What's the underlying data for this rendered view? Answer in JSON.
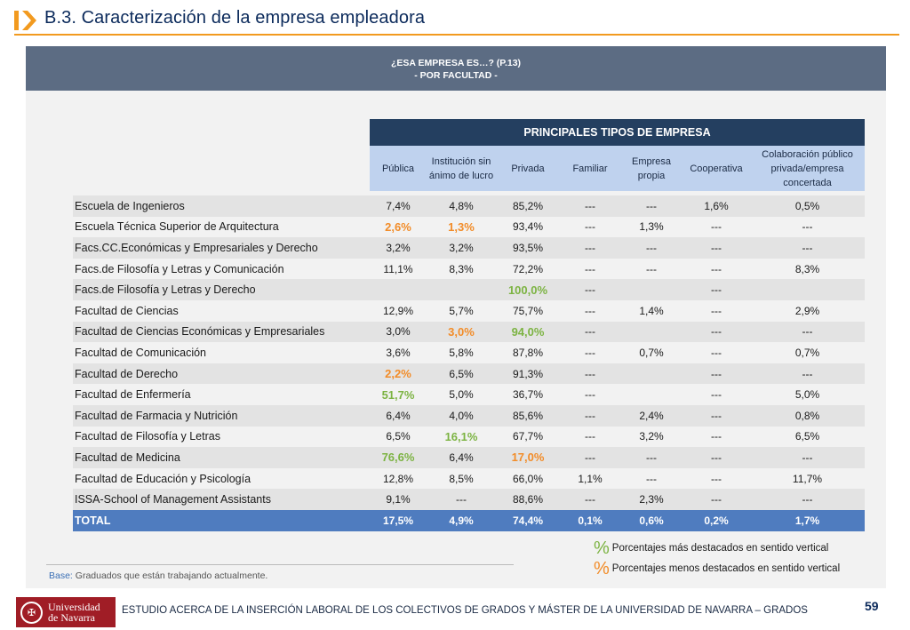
{
  "page": {
    "title": "B.3. Caracterización de la empresa empleadora",
    "page_number": "59",
    "footer": "ESTUDIO ACERCA DE LA INSERCIÓN LABORAL DE LOS COLECTIVOS DE GRADOS Y MÁSTER DE LA UNIVERSIDAD DE NAVARRA – GRADOS",
    "logo_text": [
      "Universidad",
      "de Navarra"
    ]
  },
  "banner": {
    "line1": "¿ESA EMPRESA ES…? (P.13)",
    "line2": "- POR  FACULTAD -"
  },
  "table": {
    "group_header": "PRINCIPALES TIPOS DE EMPRESA",
    "columns": [
      "Pública",
      "Institución sin ánimo de lucro",
      "Privada",
      "Familiar",
      "Empresa propia",
      "Cooperativa",
      "Colaboración público privada/empresa concertada"
    ],
    "rows": [
      {
        "label": "Escuela de Ingenieros",
        "values": [
          "7,4%",
          "4,8%",
          "85,2%",
          "---",
          "---",
          "1,6%",
          "0,5%"
        ],
        "styles": [
          "",
          "",
          "",
          "",
          "",
          "",
          ""
        ]
      },
      {
        "label": "Escuela Técnica Superior de Arquitectura",
        "values": [
          "2,6%",
          "1,3%",
          "93,4%",
          "---",
          "1,3%",
          "---",
          "---"
        ],
        "styles": [
          "lo",
          "lo",
          "",
          "",
          "",
          "",
          ""
        ]
      },
      {
        "label": "Facs.CC.Económicas y Empresariales y Derecho",
        "values": [
          "3,2%",
          "3,2%",
          "93,5%",
          "---",
          "---",
          "---",
          "---"
        ],
        "styles": [
          "",
          "",
          "",
          "",
          "",
          "",
          ""
        ]
      },
      {
        "label": "Facs.de Filosofía y Letras y Comunicación",
        "values": [
          "11,1%",
          "8,3%",
          "72,2%",
          "---",
          "---",
          "---",
          "8,3%"
        ],
        "styles": [
          "",
          "",
          "",
          "",
          "",
          "",
          ""
        ]
      },
      {
        "label": "Facs.de Filosofía y Letras y Derecho",
        "values": [
          "",
          "",
          "100,0%",
          "---",
          "",
          "---",
          ""
        ],
        "styles": [
          "",
          "",
          "hi",
          "",
          "",
          "",
          ""
        ]
      },
      {
        "label": "Facultad de Ciencias",
        "values": [
          "12,9%",
          "5,7%",
          "75,7%",
          "---",
          "1,4%",
          "---",
          "2,9%"
        ],
        "styles": [
          "",
          "",
          "",
          "",
          "",
          "",
          ""
        ]
      },
      {
        "label": "Facultad de Ciencias Económicas y Empresariales",
        "values": [
          "3,0%",
          "3,0%",
          "94,0%",
          "---",
          "",
          "---",
          "---"
        ],
        "styles": [
          "",
          "lo",
          "hi",
          "",
          "",
          "",
          ""
        ]
      },
      {
        "label": "Facultad de Comunicación",
        "values": [
          "3,6%",
          "5,8%",
          "87,8%",
          "---",
          "0,7%",
          "---",
          "0,7%"
        ],
        "styles": [
          "",
          "",
          "",
          "",
          "",
          "",
          ""
        ]
      },
      {
        "label": "Facultad de Derecho",
        "values": [
          "2,2%",
          "6,5%",
          "91,3%",
          "---",
          "",
          "---",
          "---"
        ],
        "styles": [
          "lo",
          "",
          "",
          "",
          "",
          "",
          ""
        ]
      },
      {
        "label": "Facultad de Enfermería",
        "values": [
          "51,7%",
          "5,0%",
          "36,7%",
          "---",
          "",
          "---",
          "5,0%"
        ],
        "styles": [
          "hi",
          "",
          "",
          "",
          "",
          "",
          ""
        ]
      },
      {
        "label": "Facultad de Farmacia y Nutrición",
        "values": [
          "6,4%",
          "4,0%",
          "85,6%",
          "---",
          "2,4%",
          "---",
          "0,8%"
        ],
        "styles": [
          "",
          "",
          "",
          "",
          "",
          "",
          ""
        ]
      },
      {
        "label": "Facultad de Filosofía y Letras",
        "values": [
          "6,5%",
          "16,1%",
          "67,7%",
          "---",
          "3,2%",
          "---",
          "6,5%"
        ],
        "styles": [
          "",
          "hi",
          "",
          "",
          "",
          "",
          ""
        ]
      },
      {
        "label": "Facultad de Medicina",
        "values": [
          "76,6%",
          "6,4%",
          "17,0%",
          "---",
          "---",
          "---",
          "---"
        ],
        "styles": [
          "hi",
          "",
          "lo",
          "",
          "",
          "",
          ""
        ]
      },
      {
        "label": "Facultad de Educación y Psicología",
        "values": [
          "12,8%",
          "8,5%",
          "66,0%",
          "1,1%",
          "---",
          "---",
          "11,7%"
        ],
        "styles": [
          "",
          "",
          "",
          "",
          "",
          "",
          ""
        ]
      },
      {
        "label": "ISSA-School of Management Assistants",
        "values": [
          "9,1%",
          "---",
          "88,6%",
          "---",
          "2,3%",
          "---",
          "---"
        ],
        "styles": [
          "",
          "",
          "",
          "",
          "",
          "",
          ""
        ]
      }
    ],
    "total": {
      "label": "TOTAL",
      "values": [
        "17,5%",
        "4,9%",
        "74,4%",
        "0,1%",
        "0,6%",
        "0,2%",
        "1,7%"
      ]
    }
  },
  "legend": {
    "symbol": "%",
    "hi_label": "Porcentajes más destacados en sentido vertical",
    "lo_label": "Porcentajes menos destacados en sentido vertical",
    "hi_color": "#7cb342",
    "lo_color": "#f28c28"
  },
  "base_note": {
    "key": "Base:",
    "text": " Graduados que están trabajando actualmente."
  }
}
